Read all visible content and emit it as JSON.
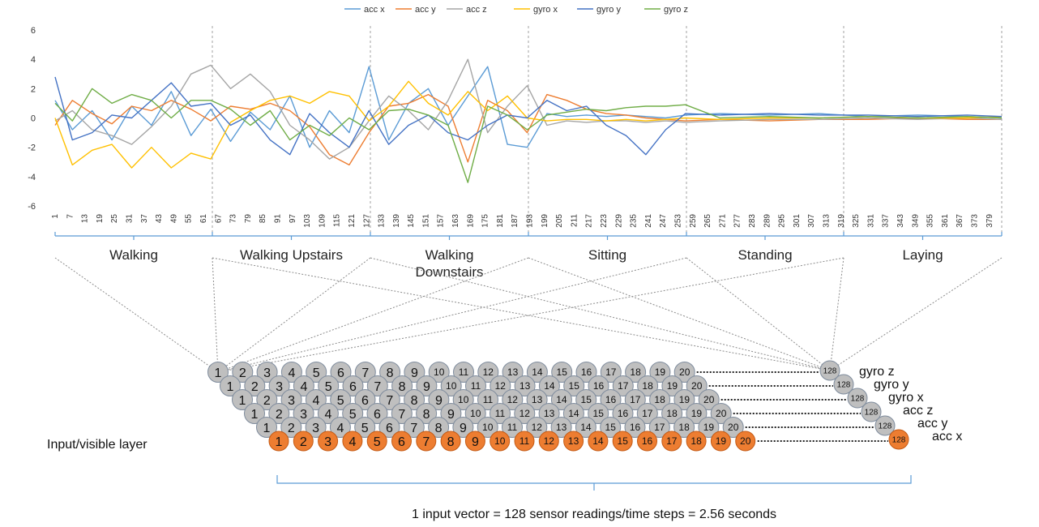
{
  "chart_data": {
    "type": "line",
    "title": "",
    "xlabel": "",
    "ylabel": "",
    "ylim": [
      -6,
      6
    ],
    "y_ticks": [
      "6",
      "4",
      "2",
      "0",
      "-2",
      "-4",
      "-6"
    ],
    "x_range": [
      1,
      384
    ],
    "x_ticks": [
      "1",
      "7",
      "13",
      "19",
      "25",
      "31",
      "37",
      "43",
      "49",
      "55",
      "61",
      "67",
      "73",
      "79",
      "85",
      "91",
      "97",
      "103",
      "109",
      "115",
      "121",
      "127",
      "133",
      "139",
      "145",
      "151",
      "157",
      "163",
      "169",
      "175",
      "181",
      "187",
      "193",
      "199",
      "205",
      "211",
      "217",
      "223",
      "229",
      "235",
      "241",
      "247",
      "253",
      "259",
      "265",
      "271",
      "277",
      "283",
      "289",
      "295",
      "301",
      "307",
      "313",
      "319",
      "325",
      "331",
      "337",
      "343",
      "349",
      "355",
      "361",
      "367",
      "373",
      "379"
    ],
    "grid": false,
    "legend_position": "top-center",
    "series": [
      {
        "name": "acc x",
        "color": "#5B9BD5",
        "x": [
          1,
          8,
          16,
          24,
          32,
          40,
          48,
          56,
          64,
          72,
          80,
          88,
          96,
          104,
          112,
          120,
          128,
          136,
          144,
          152,
          160,
          168,
          176,
          184,
          192,
          200,
          208,
          216,
          224,
          232,
          240,
          248,
          256,
          270,
          290,
          310,
          330,
          350,
          370,
          384
        ],
        "values": [
          1.2,
          -0.8,
          0.5,
          -1.5,
          0.8,
          -0.5,
          1.8,
          -1.2,
          0.6,
          -1.6,
          0.4,
          -0.8,
          1.5,
          -2.0,
          0.5,
          -1.0,
          3.5,
          -1.5,
          1.0,
          2.0,
          -0.5,
          1.5,
          3.5,
          -1.8,
          -2.0,
          0.3,
          0.1,
          0.2,
          0.1,
          0.2,
          0.1,
          0.0,
          0.2,
          0.3,
          0.2,
          0.3,
          0.1,
          0.2,
          0.1,
          0.0
        ]
      },
      {
        "name": "acc y",
        "color": "#ED7D31",
        "x": [
          1,
          8,
          16,
          24,
          32,
          40,
          48,
          56,
          64,
          72,
          80,
          88,
          96,
          104,
          112,
          120,
          128,
          136,
          144,
          152,
          160,
          168,
          176,
          184,
          192,
          200,
          208,
          216,
          224,
          232,
          240,
          248,
          256,
          270,
          290,
          310,
          330,
          350,
          370,
          384
        ],
        "values": [
          -0.5,
          1.2,
          0.3,
          -0.4,
          0.8,
          0.5,
          1.2,
          0.6,
          -0.2,
          0.8,
          0.6,
          1.0,
          0.5,
          -0.6,
          -2.5,
          -3.2,
          -1.0,
          0.8,
          1.0,
          1.6,
          0.8,
          -3.0,
          1.2,
          0.5,
          -1.0,
          1.6,
          1.2,
          0.6,
          0.3,
          0.2,
          0.0,
          -0.1,
          -0.2,
          -0.1,
          -0.2,
          -0.1,
          -0.1,
          0.0,
          -0.1,
          -0.1
        ]
      },
      {
        "name": "acc z",
        "color": "#A5A5A5",
        "x": [
          1,
          8,
          16,
          24,
          32,
          40,
          48,
          56,
          64,
          72,
          80,
          88,
          96,
          104,
          112,
          120,
          128,
          136,
          144,
          152,
          160,
          168,
          176,
          184,
          192,
          200,
          208,
          216,
          224,
          232,
          240,
          248,
          256,
          270,
          290,
          310,
          330,
          350,
          370,
          384
        ],
        "values": [
          -0.2,
          0.5,
          -0.8,
          -1.2,
          -1.8,
          -0.6,
          0.8,
          3.0,
          3.6,
          2.0,
          3.0,
          1.8,
          -0.5,
          -1.5,
          -2.8,
          -2.0,
          -0.2,
          1.5,
          0.5,
          -0.8,
          1.2,
          4.0,
          -1.0,
          0.8,
          2.2,
          -0.5,
          -0.2,
          -0.3,
          -0.2,
          -0.2,
          -0.3,
          -0.2,
          -0.3,
          -0.2,
          -0.1,
          -0.1,
          0.0,
          -0.1,
          0.0,
          -0.1
        ]
      },
      {
        "name": "gyro x",
        "color": "#FFC000",
        "x": [
          1,
          8,
          16,
          24,
          32,
          40,
          48,
          56,
          64,
          72,
          80,
          88,
          96,
          104,
          112,
          120,
          128,
          136,
          144,
          152,
          160,
          168,
          176,
          184,
          192,
          200,
          208,
          216,
          224,
          232,
          240,
          248,
          256,
          270,
          290,
          310,
          330,
          350,
          370,
          384
        ],
        "values": [
          0.0,
          -3.2,
          -2.2,
          -1.8,
          -3.4,
          -2.0,
          -3.4,
          -2.4,
          -2.8,
          -0.3,
          0.5,
          1.2,
          1.5,
          1.0,
          1.8,
          1.5,
          -0.2,
          0.8,
          2.5,
          1.0,
          0.2,
          1.8,
          0.5,
          1.5,
          0.0,
          -0.2,
          -0.1,
          -0.1,
          -0.2,
          -0.1,
          -0.2,
          -0.1,
          0.0,
          -0.1,
          0.0,
          0.0,
          0.1,
          0.0,
          0.0,
          0.1
        ]
      },
      {
        "name": "gyro y",
        "color": "#4472C4",
        "x": [
          1,
          8,
          16,
          24,
          32,
          40,
          48,
          56,
          64,
          72,
          80,
          88,
          96,
          104,
          112,
          120,
          128,
          136,
          144,
          152,
          160,
          168,
          176,
          184,
          192,
          200,
          208,
          216,
          224,
          232,
          240,
          248,
          256,
          270,
          290,
          310,
          330,
          350,
          370,
          384
        ],
        "values": [
          2.8,
          -1.5,
          -1.0,
          0.2,
          0.0,
          1.2,
          2.4,
          0.8,
          1.0,
          -0.5,
          0.2,
          -1.5,
          -2.5,
          0.3,
          -1.0,
          -2.0,
          0.5,
          -1.8,
          -0.5,
          0.2,
          -1.0,
          -1.5,
          -0.5,
          0.2,
          0.0,
          1.2,
          0.5,
          0.8,
          -0.5,
          -1.2,
          -2.5,
          -0.8,
          0.3,
          0.2,
          0.3,
          0.2,
          0.2,
          0.1,
          0.2,
          0.1
        ]
      },
      {
        "name": "gyro z",
        "color": "#70AD47",
        "x": [
          1,
          8,
          16,
          24,
          32,
          40,
          48,
          56,
          64,
          72,
          80,
          88,
          96,
          104,
          112,
          120,
          128,
          136,
          144,
          152,
          160,
          168,
          176,
          184,
          192,
          200,
          208,
          216,
          224,
          232,
          240,
          248,
          256,
          270,
          290,
          310,
          330,
          350,
          370,
          384
        ],
        "values": [
          1.0,
          -0.2,
          2.0,
          1.0,
          1.6,
          1.2,
          0.0,
          1.2,
          1.2,
          0.6,
          -0.5,
          0.5,
          -1.5,
          -0.5,
          -1.2,
          0.0,
          -0.8,
          0.5,
          0.6,
          0.2,
          -0.5,
          -4.4,
          0.8,
          0.2,
          -0.8,
          0.2,
          0.4,
          0.6,
          0.5,
          0.7,
          0.8,
          0.8,
          0.9,
          0.0,
          0.1,
          0.0,
          0.1,
          0.0,
          0.1,
          0.0
        ]
      }
    ]
  },
  "activities": [
    "Walking",
    "Walking Upstairs",
    "Walking\nDownstairs",
    "Sitting",
    "Standing",
    "Laying"
  ],
  "circle_numbers": [
    "1",
    "2",
    "3",
    "4",
    "5",
    "6",
    "7",
    "8",
    "9",
    "10",
    "11",
    "12",
    "13",
    "14",
    "15",
    "16",
    "17",
    "18",
    "19",
    "20"
  ],
  "last_step": "128",
  "channels": [
    "gyro z",
    "gyro y",
    "gyro x",
    "acc z",
    "acc y",
    "acc x"
  ],
  "colors": {
    "gray_circle": "#BFBFBF",
    "orange_circle": "#ED7D31",
    "circle_stroke": "#7F8C9D",
    "bracket": "#5B9BD5"
  },
  "input_layer_label": "Input/visible layer",
  "caption": "1 input vector = 128 sensor readings/time steps = 2.56 seconds"
}
